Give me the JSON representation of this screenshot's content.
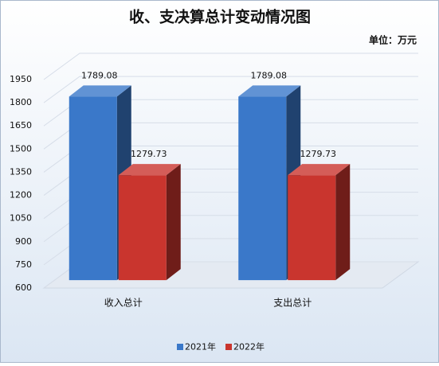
{
  "chart_data": {
    "type": "bar3d",
    "title": "收、支决算总计变动情况图",
    "subtitle": "单位：万元",
    "categories": [
      "收入总计",
      "支出总计"
    ],
    "series": [
      {
        "name": "2021年",
        "color": "#3a78c9",
        "values": [
          1789.08,
          1789.08
        ]
      },
      {
        "name": "2022年",
        "color": "#c9352e",
        "values": [
          1279.73,
          1279.73
        ]
      }
    ],
    "ylim": [
      600,
      1950
    ],
    "yticks": [
      600,
      750,
      900,
      1050,
      1200,
      1350,
      1500,
      1650,
      1800,
      1950
    ],
    "grid": true,
    "legend": "bottom"
  }
}
